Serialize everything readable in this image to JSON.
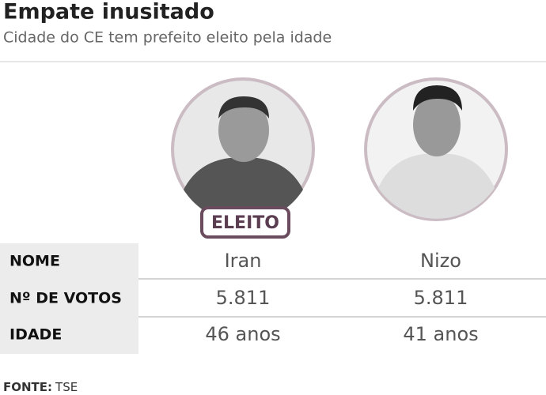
{
  "header": {
    "title": "Empate inusitado",
    "subtitle": "Cidade do CE tem prefeito eleito pela idade"
  },
  "badge": "ELEITO",
  "table": {
    "rows": [
      [
        "NOME",
        "Iran",
        "Nizo"
      ],
      [
        "Nº DE VOTOS",
        "5.811",
        "5.811"
      ],
      [
        "IDADE",
        "46 anos",
        "41 anos"
      ]
    ]
  },
  "source": {
    "label": "FONTE:",
    "text": "TSE"
  }
}
